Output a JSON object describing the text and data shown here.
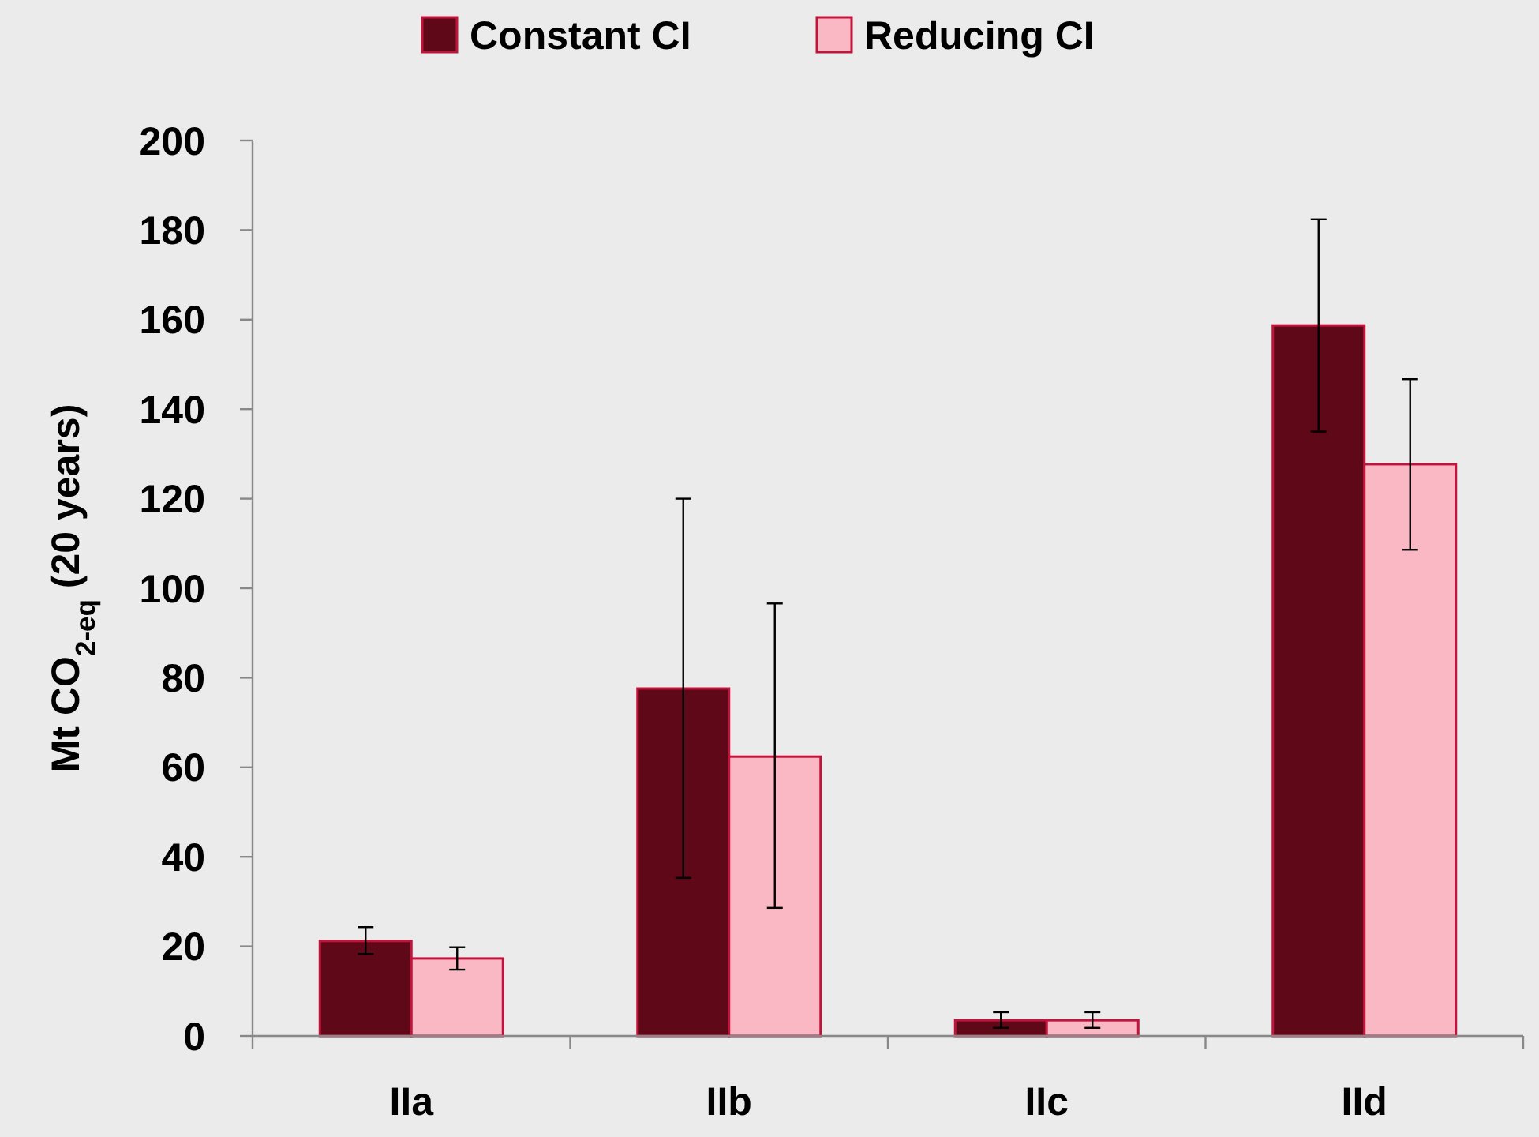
{
  "chart_data": {
    "type": "bar",
    "ylabel": "Mt CO$_{2-eq}$ (20 years)",
    "categories": [
      "IIa",
      "IIb",
      "IIc",
      "IId"
    ],
    "series": [
      {
        "name": "Constant CI",
        "color": "#5f0818",
        "values": [
          21.2,
          77.6,
          3.5,
          158.7
        ],
        "errors": [
          [
            18.3,
            24.3
          ],
          [
            35.3,
            120
          ],
          [
            1.8,
            5.3
          ],
          [
            135,
            182.4
          ]
        ]
      },
      {
        "name": "Reducing CI",
        "color": "#f9b8c4",
        "values": [
          17.3,
          62.4,
          3.5,
          127.7
        ],
        "errors": [
          [
            14.8,
            19.8
          ],
          [
            28.6,
            96.6
          ],
          [
            1.8,
            5.3
          ],
          [
            108.6,
            146.7
          ]
        ]
      }
    ],
    "ylim": [
      0,
      200
    ],
    "yticks": [
      0,
      20,
      40,
      60,
      80,
      100,
      120,
      140,
      160,
      180,
      200
    ],
    "legend": "top",
    "grid": false
  }
}
